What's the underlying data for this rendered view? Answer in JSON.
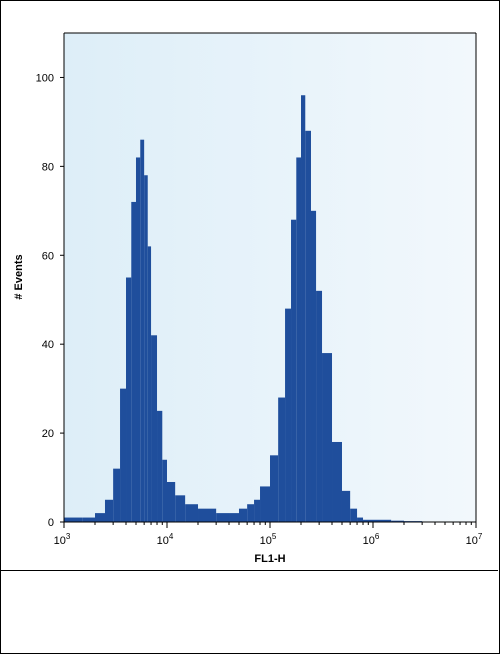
{
  "chart_data": {
    "type": "area",
    "title": "",
    "xlabel": "FL1-H",
    "ylabel": "# Events",
    "x_scale": "log",
    "xlim": [
      1000,
      10000000
    ],
    "ylim": [
      0,
      110
    ],
    "x_ticks": [
      {
        "value": 1000,
        "base": "10",
        "exp": "3"
      },
      {
        "value": 10000,
        "base": "10",
        "exp": "4"
      },
      {
        "value": 100000,
        "base": "10",
        "exp": "5"
      },
      {
        "value": 1000000,
        "base": "10",
        "exp": "6"
      },
      {
        "value": 10000000,
        "base": "10",
        "exp": "7"
      }
    ],
    "y_ticks": [
      0,
      20,
      40,
      60,
      80,
      100
    ],
    "grid": false,
    "colors": {
      "fill": "#1f4e9c",
      "plot_background_start": "#ddeef8",
      "plot_background_end": "#f2f8fc"
    },
    "series": [
      {
        "x": [
          1000,
          1500,
          2000,
          2500,
          3000,
          3500,
          4000,
          4500,
          5000,
          5500,
          6000,
          6500,
          7000,
          8000,
          9000,
          10000,
          12000,
          15000,
          20000,
          30000,
          40000,
          50000,
          60000,
          70000,
          80000,
          100000,
          120000,
          140000,
          160000,
          180000,
          200000,
          220000,
          250000,
          280000,
          320000,
          400000,
          500000,
          600000,
          700000,
          800000,
          1000000,
          1500000,
          2000000,
          3000000,
          5000000,
          10000000
        ],
        "values": [
          1,
          1,
          2,
          5,
          12,
          30,
          55,
          72,
          82,
          86,
          78,
          62,
          42,
          25,
          14,
          9,
          6,
          4,
          3,
          2,
          2,
          3,
          4,
          5,
          8,
          15,
          28,
          48,
          68,
          82,
          96,
          88,
          70,
          52,
          38,
          18,
          7,
          3,
          1,
          0.5,
          0.5,
          0.3,
          0.2,
          0,
          0,
          0
        ]
      }
    ]
  }
}
